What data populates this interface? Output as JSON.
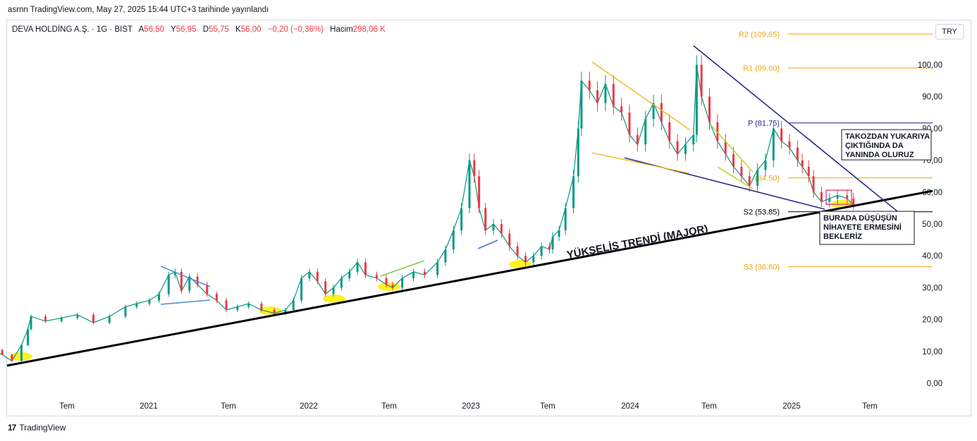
{
  "published": "asrnn TradingView.com, May 27, 2025 15:44 UTC+3 tarihinde yayınlandı",
  "legend": {
    "symbol": "DEVA HOLDİNG A.Ş. · 1G · BIST",
    "open_label": "A",
    "open": "56,50",
    "high_label": "Y",
    "high": "56,95",
    "low_label": "D",
    "low": "55,75",
    "close_label": "K",
    "close": "56,00",
    "change": "−0,20 (−0,36%)",
    "volume_label": "Hacim",
    "volume": "298,06 K"
  },
  "currency": "TRY",
  "footer": {
    "logo_text": "TradingView"
  },
  "colors": {
    "up": "#089981",
    "down": "#f23645",
    "support": "#000000",
    "downtrend": "#2a2a8c",
    "pivot_gold": "#f0a616",
    "pivot_blue": "#2a2a8c",
    "highlight": "#ffee00"
  },
  "chart_data": {
    "type": "line",
    "title": "DEVA HOLDİNG A.Ş. · 1G · BIST",
    "ylim": [
      -5,
      112
    ],
    "y_ticks": [
      "0,00",
      "10,00",
      "20,00",
      "30,00",
      "40,00",
      "50,00",
      "60,00",
      "70,00",
      "80,00",
      "90,00",
      "100,00"
    ],
    "x_ticks": [
      "Tem",
      "2021",
      "Tem",
      "2022",
      "Tem",
      "2023",
      "Tem",
      "2024",
      "Tem",
      "2025",
      "Tem"
    ],
    "x_range": [
      2020.0,
      2025.98
    ],
    "series": [
      {
        "values": [
          [
            2020.0,
            10.5
          ],
          [
            2020.08,
            9.0
          ],
          [
            2020.14,
            7.0
          ],
          [
            2020.2,
            12.0
          ],
          [
            2020.24,
            17.0
          ],
          [
            2020.26,
            21.0
          ],
          [
            2020.35,
            19.5
          ],
          [
            2020.45,
            20.5
          ],
          [
            2020.55,
            21.5
          ],
          [
            2020.65,
            19.0
          ],
          [
            2020.75,
            21.0
          ],
          [
            2020.85,
            24.0
          ],
          [
            2020.92,
            25.0
          ],
          [
            2021.0,
            26.0
          ],
          [
            2021.06,
            28.0
          ],
          [
            2021.12,
            34.0
          ],
          [
            2021.16,
            35.0
          ],
          [
            2021.2,
            29.0
          ],
          [
            2021.25,
            33.5
          ],
          [
            2021.3,
            31.0
          ],
          [
            2021.36,
            28.0
          ],
          [
            2021.42,
            26.0
          ],
          [
            2021.48,
            23.0
          ],
          [
            2021.55,
            24.0
          ],
          [
            2021.62,
            25.0
          ],
          [
            2021.7,
            23.0
          ],
          [
            2021.78,
            22.0
          ],
          [
            2021.85,
            23.0
          ],
          [
            2021.9,
            26.0
          ],
          [
            2021.95,
            33.0
          ],
          [
            2022.0,
            35.0
          ],
          [
            2022.05,
            32.0
          ],
          [
            2022.1,
            28.0
          ],
          [
            2022.15,
            30.0
          ],
          [
            2022.2,
            33.0
          ],
          [
            2022.25,
            35.0
          ],
          [
            2022.3,
            38.0
          ],
          [
            2022.35,
            34.0
          ],
          [
            2022.42,
            33.0
          ],
          [
            2022.48,
            31.0
          ],
          [
            2022.52,
            30.0
          ],
          [
            2022.58,
            33.0
          ],
          [
            2022.65,
            35.0
          ],
          [
            2022.72,
            34.0
          ],
          [
            2022.8,
            38.0
          ],
          [
            2022.85,
            42.0
          ],
          [
            2022.9,
            48.0
          ],
          [
            2022.95,
            55.0
          ],
          [
            2023.0,
            70.0
          ],
          [
            2023.03,
            65.0
          ],
          [
            2023.06,
            55.0
          ],
          [
            2023.1,
            48.0
          ],
          [
            2023.15,
            50.0
          ],
          [
            2023.2,
            47.0
          ],
          [
            2023.25,
            43.0
          ],
          [
            2023.3,
            40.0
          ],
          [
            2023.35,
            38.0
          ],
          [
            2023.4,
            40.0
          ],
          [
            2023.45,
            43.0
          ],
          [
            2023.5,
            42.0
          ],
          [
            2023.52,
            46.0
          ],
          [
            2023.56,
            48.0
          ],
          [
            2023.6,
            55.0
          ],
          [
            2023.65,
            65.0
          ],
          [
            2023.68,
            80.0
          ],
          [
            2023.7,
            95.0
          ],
          [
            2023.75,
            92.0
          ],
          [
            2023.8,
            88.0
          ],
          [
            2023.85,
            94.0
          ],
          [
            2023.9,
            87.0
          ],
          [
            2023.95,
            85.0
          ],
          [
            2024.0,
            78.0
          ],
          [
            2024.05,
            75.0
          ],
          [
            2024.1,
            83.0
          ],
          [
            2024.15,
            88.0
          ],
          [
            2024.2,
            82.0
          ],
          [
            2024.25,
            76.0
          ],
          [
            2024.3,
            72.0
          ],
          [
            2024.35,
            75.0
          ],
          [
            2024.4,
            78.0
          ],
          [
            2024.42,
            100.0
          ],
          [
            2024.45,
            90.0
          ],
          [
            2024.5,
            82.0
          ],
          [
            2024.55,
            76.0
          ],
          [
            2024.6,
            72.0
          ],
          [
            2024.65,
            68.0
          ],
          [
            2024.7,
            65.0
          ],
          [
            2024.75,
            62.0
          ],
          [
            2024.8,
            67.0
          ],
          [
            2024.85,
            70.0
          ],
          [
            2024.9,
            80.0
          ],
          [
            2024.95,
            76.0
          ],
          [
            2025.0,
            74.0
          ],
          [
            2025.05,
            70.0
          ],
          [
            2025.08,
            68.0
          ],
          [
            2025.12,
            65.0
          ],
          [
            2025.15,
            60.0
          ],
          [
            2025.2,
            57.0
          ],
          [
            2025.25,
            58.0
          ],
          [
            2025.3,
            59.0
          ],
          [
            2025.36,
            58.0
          ],
          [
            2025.4,
            56.0
          ]
        ]
      }
    ],
    "pivots": [
      {
        "label": "R2 (109.65)",
        "value": 109.65,
        "color": "#f0a616"
      },
      {
        "label": "R1 (99.00)",
        "value": 99.0,
        "color": "#f0a616"
      },
      {
        "label": "P (81.75)",
        "value": 81.75,
        "color": "#2a2a8c"
      },
      {
        "label": "(64.50)",
        "value": 64.5,
        "color": "#f0a616"
      },
      {
        "label": "S2 (53.85)",
        "value": 53.85,
        "color": "#000000"
      },
      {
        "label": "S3 (36.60)",
        "value": 36.6,
        "color": "#f0a616"
      }
    ],
    "annotations": {
      "uptrend_label": "YÜKSELİŞ TRENDİ (MAJOR)",
      "note_top": [
        "TAKOZDAN YUKARIYA",
        "ÇIKTIĞINDA DA",
        "YANINDA OLURUZ"
      ],
      "note_bottom": [
        "BURADA DÜŞÜŞÜN",
        "NİHAYETE ERMESİNİ",
        "BEKLERİZ"
      ]
    }
  }
}
